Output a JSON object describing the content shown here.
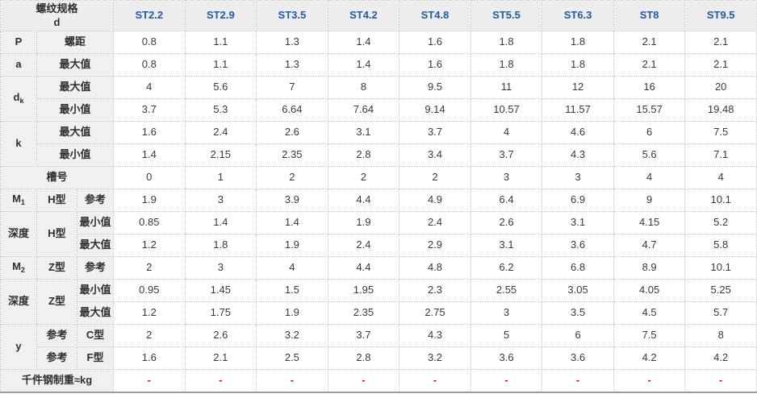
{
  "colors": {
    "column_header_text": "#1e5aa8",
    "label_cell_bg": "#f0f0f0",
    "header_row_bg": "#ededed",
    "data_text": "#3a3a3a",
    "border_dotted": "#c8c8c8",
    "missing_value_dash": "#ff0000"
  },
  "header": {
    "corner_line1": "螺纹规格",
    "corner_line2": "d",
    "columns": [
      "ST2.2",
      "ST2.9",
      "ST3.5",
      "ST4.2",
      "ST4.8",
      "ST5.5",
      "ST6.3",
      "ST8",
      "ST9.5"
    ]
  },
  "rows": {
    "p": {
      "symbol": "P",
      "label": "螺距",
      "values": [
        "0.8",
        "1.1",
        "1.3",
        "1.4",
        "1.6",
        "1.8",
        "1.8",
        "2.1",
        "2.1"
      ]
    },
    "a": {
      "symbol": "a",
      "label": "最大值",
      "values": [
        "0.8",
        "1.1",
        "1.3",
        "1.4",
        "1.6",
        "1.8",
        "1.8",
        "2.1",
        "2.1"
      ]
    },
    "dk": {
      "symbol_main": "d",
      "symbol_sub": "k",
      "max_label": "最大值",
      "min_label": "最小值",
      "max": [
        "4",
        "5.6",
        "7",
        "8",
        "9.5",
        "11",
        "12",
        "16",
        "20"
      ],
      "min": [
        "3.7",
        "5.3",
        "6.64",
        "7.64",
        "9.14",
        "10.57",
        "11.57",
        "15.57",
        "19.48"
      ]
    },
    "k": {
      "symbol": "k",
      "max_label": "最大值",
      "min_label": "最小值",
      "max": [
        "1.6",
        "2.4",
        "2.6",
        "3.1",
        "3.7",
        "4",
        "4.6",
        "6",
        "7.5"
      ],
      "min": [
        "1.4",
        "2.15",
        "2.35",
        "2.8",
        "3.4",
        "3.7",
        "4.3",
        "5.6",
        "7.1"
      ]
    },
    "slot": {
      "label": "槽号",
      "values": [
        "0",
        "1",
        "2",
        "2",
        "2",
        "3",
        "3",
        "4",
        "4"
      ]
    },
    "m1": {
      "symbol_main": "M",
      "symbol_sub": "1",
      "type": "H型",
      "ref_label": "参考",
      "values": [
        "1.9",
        "3",
        "3.9",
        "4.4",
        "4.9",
        "6.4",
        "6.9",
        "9",
        "10.1"
      ]
    },
    "depth_h": {
      "label": "深度",
      "type": "H型",
      "min_label": "最小值",
      "max_label": "最大值",
      "min": [
        "0.85",
        "1.4",
        "1.4",
        "1.9",
        "2.4",
        "2.6",
        "3.1",
        "4.15",
        "5.2"
      ],
      "max": [
        "1.2",
        "1.8",
        "1.9",
        "2.4",
        "2.9",
        "3.1",
        "3.6",
        "4.7",
        "5.8"
      ]
    },
    "m2": {
      "symbol_main": "M",
      "symbol_sub": "2",
      "type": "Z型",
      "ref_label": "参考",
      "values": [
        "2",
        "3",
        "4",
        "4.4",
        "4.8",
        "6.2",
        "6.8",
        "8.9",
        "10.1"
      ]
    },
    "depth_z": {
      "label": "深度",
      "type": "Z型",
      "min_label": "最小值",
      "max_label": "最大值",
      "min": [
        "0.95",
        "1.45",
        "1.5",
        "1.95",
        "2.3",
        "2.55",
        "3.05",
        "4.05",
        "5.25"
      ],
      "max": [
        "1.2",
        "1.75",
        "1.9",
        "2.35",
        "2.75",
        "3",
        "3.5",
        "4.5",
        "5.7"
      ]
    },
    "y": {
      "symbol": "y",
      "ref_label1": "参考",
      "ref_label2": "参考",
      "c_label": "C型",
      "f_label": "F型",
      "c": [
        "2",
        "2.6",
        "3.2",
        "3.7",
        "4.3",
        "5",
        "6",
        "7.5",
        "8"
      ],
      "f": [
        "1.6",
        "2.1",
        "2.5",
        "2.8",
        "3.2",
        "3.6",
        "3.6",
        "4.2",
        "4.2"
      ]
    },
    "weight": {
      "label": "千件钢制重≈kg",
      "values": [
        "-",
        "-",
        "-",
        "-",
        "-",
        "-",
        "-",
        "-",
        "-"
      ]
    }
  }
}
